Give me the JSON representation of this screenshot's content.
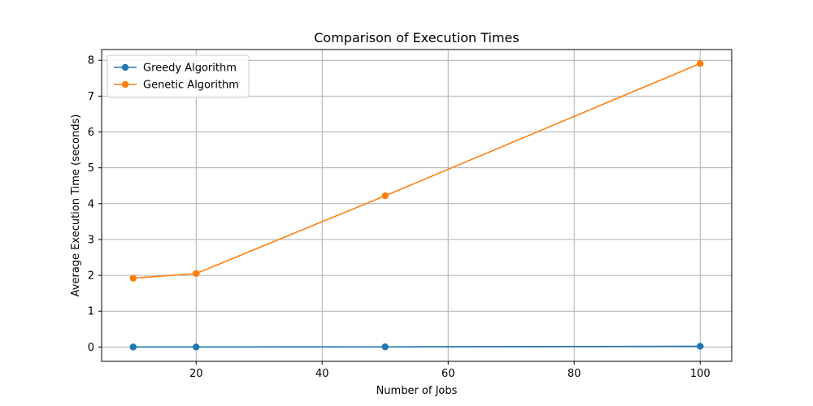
{
  "chart_data": {
    "type": "line",
    "title": "Comparison of Execution Times",
    "xlabel": "Number of Jobs",
    "ylabel": "Average Execution Time (seconds)",
    "x": [
      10,
      20,
      50,
      100
    ],
    "xlim": [
      5,
      105
    ],
    "ylim": [
      -0.4,
      8.3
    ],
    "xticks": [
      20,
      40,
      60,
      80,
      100
    ],
    "yticks": [
      0,
      1,
      2,
      3,
      4,
      5,
      6,
      7,
      8
    ],
    "grid": true,
    "legend_position": "top-left",
    "series": [
      {
        "name": "Greedy Algorithm",
        "color": "#1f77b4",
        "values": [
          0.0,
          0.0,
          0.005,
          0.02
        ]
      },
      {
        "name": "Genetic Algorithm",
        "color": "#ff7f0e",
        "values": [
          1.92,
          2.05,
          4.22,
          7.91
        ]
      }
    ]
  }
}
